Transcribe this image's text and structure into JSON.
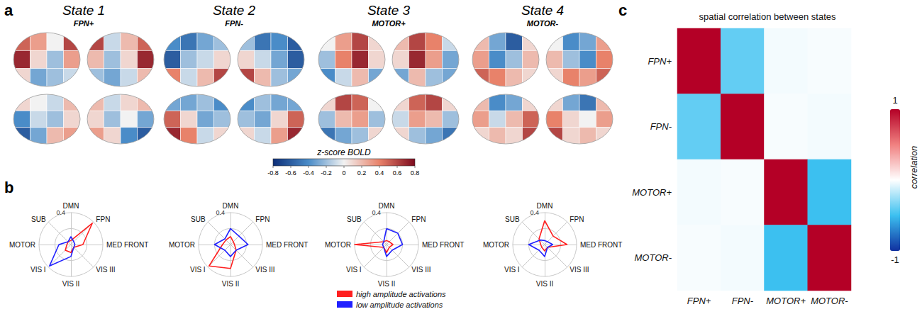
{
  "chart_data": [
    {
      "type": "brain_map",
      "letter": "a",
      "states": [
        {
          "title": "State 1",
          "subtitle": "FPN+",
          "views": [
            [
              [
                0.5,
                0.3,
                0.0,
                0.6
              ],
              [
                0.7,
                0.1,
                -0.2,
                0.3
              ],
              [
                0.1,
                -0.3,
                -0.2,
                -0.1
              ]
            ],
            [
              [
                0.6,
                -0.1,
                0.2,
                0.5
              ],
              [
                0.2,
                -0.2,
                0.1,
                0.7
              ],
              [
                -0.2,
                -0.3,
                -0.1,
                0.2
              ]
            ],
            [
              [
                0.1,
                0.0,
                -0.1,
                0.2
              ],
              [
                -0.4,
                -0.1,
                -0.2,
                0.1
              ],
              [
                -0.6,
                -0.3,
                0.2,
                0.3
              ]
            ],
            [
              [
                0.2,
                -0.1,
                0.1,
                0.2
              ],
              [
                0.1,
                -0.2,
                0.0,
                -0.3
              ],
              [
                0.3,
                0.1,
                -0.4,
                -0.6
              ]
            ]
          ]
        },
        {
          "title": "State 2",
          "subtitle": "FPN-",
          "views": [
            [
              [
                -0.4,
                -0.5,
                -0.3,
                -0.2
              ],
              [
                -0.6,
                -0.2,
                -0.1,
                0.1
              ],
              [
                0.4,
                -0.1,
                0.2,
                0.6
              ]
            ],
            [
              [
                -0.2,
                -0.5,
                -0.4,
                -0.6
              ],
              [
                0.1,
                -0.1,
                -0.3,
                -0.6
              ],
              [
                0.6,
                0.2,
                -0.2,
                -0.3
              ]
            ],
            [
              [
                -0.3,
                -0.3,
                -0.2,
                -0.4
              ],
              [
                0.5,
                0.1,
                -0.3,
                -0.2
              ],
              [
                0.7,
                0.4,
                -0.1,
                0.1
              ]
            ],
            [
              [
                -0.4,
                -0.2,
                -0.3,
                -0.3
              ],
              [
                -0.2,
                -0.3,
                0.1,
                0.5
              ],
              [
                0.1,
                -0.1,
                0.3,
                0.7
              ]
            ]
          ]
        },
        {
          "title": "State 3",
          "subtitle": "MOTOR+",
          "views": [
            [
              [
                0.0,
                0.3,
                0.6,
                0.1
              ],
              [
                -0.2,
                0.4,
                0.7,
                0.1
              ],
              [
                -0.4,
                -0.1,
                0.2,
                -0.3
              ]
            ],
            [
              [
                0.2,
                0.6,
                0.4,
                -0.1
              ],
              [
                0.1,
                0.7,
                0.3,
                -0.3
              ],
              [
                -0.3,
                0.2,
                -0.2,
                -0.3
              ]
            ],
            [
              [
                0.1,
                0.6,
                0.5,
                0.0
              ],
              [
                -0.2,
                0.2,
                0.3,
                -0.2
              ],
              [
                -0.5,
                -0.3,
                -0.2,
                0.1
              ]
            ],
            [
              [
                0.1,
                0.5,
                0.6,
                0.1
              ],
              [
                -0.1,
                0.3,
                0.2,
                -0.2
              ],
              [
                0.1,
                -0.2,
                -0.3,
                -0.5
              ]
            ]
          ]
        },
        {
          "title": "State 4",
          "subtitle": "MOTOR-",
          "views": [
            [
              [
                0.2,
                -0.3,
                -0.6,
                0.1
              ],
              [
                0.3,
                -0.4,
                -0.2,
                0.2
              ],
              [
                0.5,
                0.4,
                0.2,
                0.1
              ]
            ],
            [
              [
                0.0,
                -0.4,
                -0.3,
                0.3
              ],
              [
                0.2,
                -0.2,
                -0.4,
                0.4
              ],
              [
                0.1,
                0.4,
                0.3,
                0.5
              ]
            ],
            [
              [
                0.2,
                -0.4,
                -0.3,
                0.1
              ],
              [
                0.3,
                -0.1,
                0.2,
                0.5
              ],
              [
                0.1,
                0.2,
                0.1,
                0.6
              ]
            ],
            [
              [
                0.1,
                -0.3,
                -0.5,
                0.2
              ],
              [
                0.4,
                0.1,
                0.0,
                0.3
              ],
              [
                0.6,
                0.1,
                0.2,
                0.1
              ]
            ]
          ]
        }
      ],
      "colorbar": {
        "label": "z-score BOLD",
        "range": [
          -0.8,
          0.8
        ],
        "ticks": [
          -0.8,
          -0.6,
          -0.4,
          -0.2,
          0,
          0.2,
          0.4,
          0.6,
          0.8
        ]
      }
    },
    {
      "type": "radar",
      "letter": "b",
      "axes": [
        "DMN",
        "SUB",
        "MOTOR",
        "VIS I",
        "VIS II",
        "VIS III",
        "MED FRONT",
        "FPN"
      ],
      "rlim": [
        0,
        0.4
      ],
      "rticks": [
        0.4
      ],
      "legend": "bottom",
      "panels": [
        {
          "series": [
            {
              "name": "high amplitude activations",
              "color": "#ff2020",
              "values": [
                0.05,
                0.05,
                0.05,
                0.1,
                0.1,
                0.05,
                0.15,
                0.38
              ]
            },
            {
              "name": "low amplitude activations",
              "color": "#2020ff",
              "values": [
                0.1,
                0.05,
                0.15,
                0.38,
                0.15,
                0.05,
                0.05,
                0.05
              ]
            }
          ]
        },
        {
          "series": [
            {
              "name": "high amplitude activations",
              "color": "#ff2020",
              "values": [
                0.1,
                0.08,
                0.1,
                0.38,
                0.3,
                0.1,
                0.05,
                0.05
              ]
            },
            {
              "name": "low amplitude activations",
              "color": "#2020ff",
              "values": [
                0.2,
                0.1,
                0.2,
                0.1,
                0.15,
                0.1,
                0.22,
                0.15
              ]
            }
          ]
        },
        {
          "series": [
            {
              "name": "high amplitude activations",
              "color": "#ff2020",
              "values": [
                0.05,
                0.05,
                0.4,
                0.05,
                0.1,
                0.05,
                0.08,
                0.05
              ]
            },
            {
              "name": "low amplitude activations",
              "color": "#2020ff",
              "values": [
                0.2,
                0.05,
                0.05,
                0.05,
                0.15,
                0.1,
                0.2,
                0.2
              ]
            }
          ]
        },
        {
          "series": [
            {
              "name": "high amplitude activations",
              "color": "#ff2020",
              "values": [
                0.3,
                0.1,
                0.05,
                0.05,
                0.08,
                0.05,
                0.28,
                0.15
              ]
            },
            {
              "name": "low amplitude activations",
              "color": "#2020ff",
              "values": [
                0.05,
                0.08,
                0.2,
                0.1,
                0.15,
                0.05,
                0.1,
                0.05
              ]
            }
          ]
        }
      ]
    },
    {
      "type": "heatmap",
      "letter": "c",
      "title": "spatial correlation between states",
      "x": [
        "FPN+",
        "FPN-",
        "MOTOR+",
        "MOTOR-"
      ],
      "y": [
        "FPN+",
        "FPN-",
        "MOTOR+",
        "MOTOR-"
      ],
      "cells": [
        [
          1,
          -0.4,
          -0.03,
          -0.02
        ],
        [
          -0.4,
          1,
          -0.02,
          -0.03
        ],
        [
          -0.03,
          -0.02,
          1,
          -0.5
        ],
        [
          -0.02,
          -0.03,
          -0.5,
          1
        ]
      ],
      "colorbar": {
        "label": "correlation",
        "range": [
          -1,
          1
        ],
        "ticks": [
          -1,
          1
        ]
      }
    }
  ]
}
